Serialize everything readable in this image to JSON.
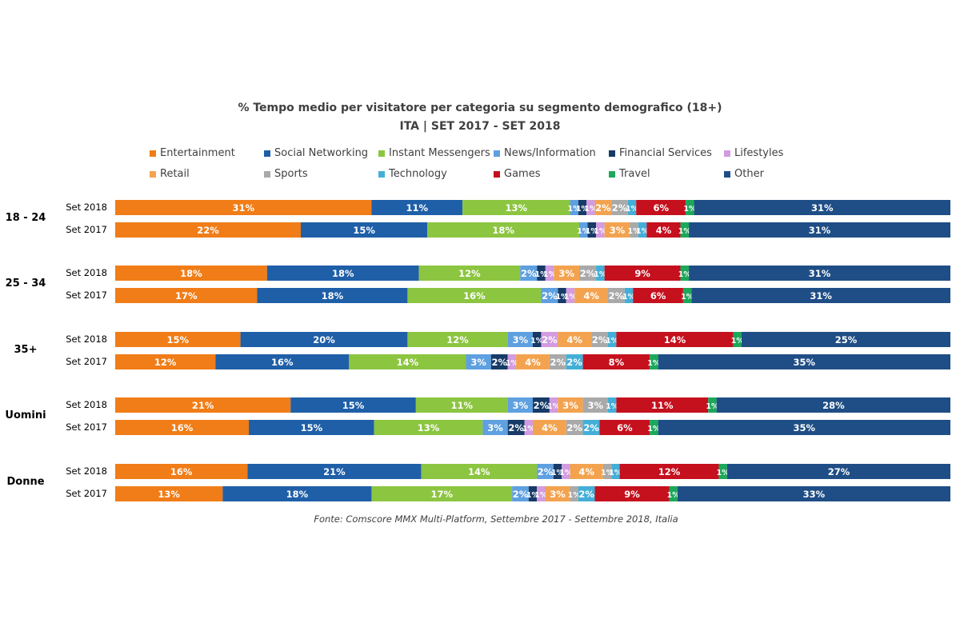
{
  "chart_data": {
    "type": "bar",
    "orientation": "horizontal",
    "stacked": "100%",
    "title": "% Tempo medio per visitatore per categoria su segmento demografico (18+)",
    "subtitle": "ITA | SET 2017 - SET 2018",
    "legend_position": "top",
    "series": [
      {
        "name": "Entertainment",
        "color": "#F07D17"
      },
      {
        "name": "Social Networking",
        "color": "#1F5FA8"
      },
      {
        "name": "Instant Messengers",
        "color": "#8CC540"
      },
      {
        "name": "News/Information",
        "color": "#5EA0E0"
      },
      {
        "name": "Financial Services",
        "color": "#173A67"
      },
      {
        "name": "Lifestyles",
        "color": "#D39BE0"
      },
      {
        "name": "Retail",
        "color": "#F3A34F"
      },
      {
        "name": "Sports",
        "color": "#A9A9A9"
      },
      {
        "name": "Technology",
        "color": "#43AFD8"
      },
      {
        "name": "Games",
        "color": "#C5101E"
      },
      {
        "name": "Travel",
        "color": "#1CA85A"
      },
      {
        "name": "Other",
        "color": "#1F4E86"
      }
    ],
    "groups": [
      {
        "name": "18 - 24",
        "rows": [
          {
            "label": "Set 2018",
            "values": [
              31,
              11,
              13,
              1,
              1,
              1,
              2,
              2,
              1,
              6,
              1,
              31
            ],
            "labels": [
              "31%",
              "11%",
              "13%",
              "1%",
              "1%",
              "1%",
              "2%",
              "2%",
              "1%",
              "6%",
              "1%",
              "31%"
            ]
          },
          {
            "label": "Set 2017",
            "values": [
              22,
              15,
              18,
              1,
              1,
              1,
              3,
              1,
              1,
              4,
              1,
              31
            ],
            "labels": [
              "22%",
              "15%",
              "18%",
              "1%",
              "1%",
              "1%",
              "3%",
              "1%",
              "1%",
              "4%",
              "1%",
              "31%"
            ]
          }
        ]
      },
      {
        "name": "25 - 34",
        "rows": [
          {
            "label": "Set 2018",
            "values": [
              18,
              18,
              12,
              2,
              1,
              1,
              3,
              2,
              1,
              9,
              1,
              31
            ],
            "labels": [
              "18%",
              "18%",
              "12%",
              "2%",
              "1%",
              "1%",
              "3%",
              "2%",
              "1%",
              "9%",
              "1%",
              "31%"
            ]
          },
          {
            "label": "Set 2017",
            "values": [
              17,
              18,
              16,
              2,
              1,
              1,
              4,
              2,
              1,
              6,
              1,
              31
            ],
            "labels": [
              "17%",
              "18%",
              "16%",
              "2%",
              "1%",
              "1%",
              "4%",
              "2%",
              "1%",
              "6%",
              "1%",
              "31%"
            ]
          }
        ]
      },
      {
        "name": "35+",
        "rows": [
          {
            "label": "Set 2018",
            "values": [
              15,
              20,
              12,
              3,
              1,
              2,
              4,
              2,
              1,
              14,
              1,
              25
            ],
            "labels": [
              "15%",
              "20%",
              "12%",
              "3%",
              "1%",
              "2%",
              "4%",
              "2%",
              "1%",
              "14%",
              "1%",
              "25%"
            ]
          },
          {
            "label": "Set 2017",
            "values": [
              12,
              16,
              14,
              3,
              2,
              1,
              4,
              2,
              2,
              8,
              1,
              35
            ],
            "labels": [
              "12%",
              "16%",
              "14%",
              "3%",
              "2%",
              "1%",
              "4%",
              "2%",
              "2%",
              "8%",
              "1%",
              "35%"
            ]
          }
        ]
      },
      {
        "name": "Uomini",
        "rows": [
          {
            "label": "Set 2018",
            "values": [
              21,
              15,
              11,
              3,
              2,
              1,
              3,
              3,
              1,
              11,
              1,
              28
            ],
            "labels": [
              "21%",
              "15%",
              "11%",
              "3%",
              "2%",
              "1%",
              "3%",
              "3%",
              "1%",
              "11%",
              "1%",
              "28%"
            ]
          },
          {
            "label": "Set 2017",
            "values": [
              16,
              15,
              13,
              3,
              2,
              1,
              4,
              2,
              2,
              6,
              1,
              35
            ],
            "labels": [
              "16%",
              "15%",
              "13%",
              "3%",
              "2%",
              "1%",
              "4%",
              "2%",
              "2%",
              "6%",
              "1%",
              "35%"
            ]
          }
        ]
      },
      {
        "name": "Donne",
        "rows": [
          {
            "label": "Set 2018",
            "values": [
              16,
              21,
              14,
              2,
              1,
              1,
              4,
              1,
              1,
              12,
              1,
              27
            ],
            "labels": [
              "16%",
              "21%",
              "14%",
              "2%",
              "1%",
              "1%",
              "4%",
              "1%",
              "1%",
              "12%",
              "1%",
              "27%"
            ]
          },
          {
            "label": "Set 2017",
            "values": [
              13,
              18,
              17,
              2,
              1,
              1,
              3,
              1,
              2,
              9,
              1,
              33
            ],
            "labels": [
              "13%",
              "18%",
              "17%",
              "2%",
              "1%",
              "1%",
              "3%",
              "1%",
              "2%",
              "9%",
              "1%",
              "33%"
            ]
          }
        ]
      }
    ]
  },
  "source_note": "Fonte: Comscore MMX Multi-Platform, Settembre 2017 - Settembre 2018, Italia"
}
